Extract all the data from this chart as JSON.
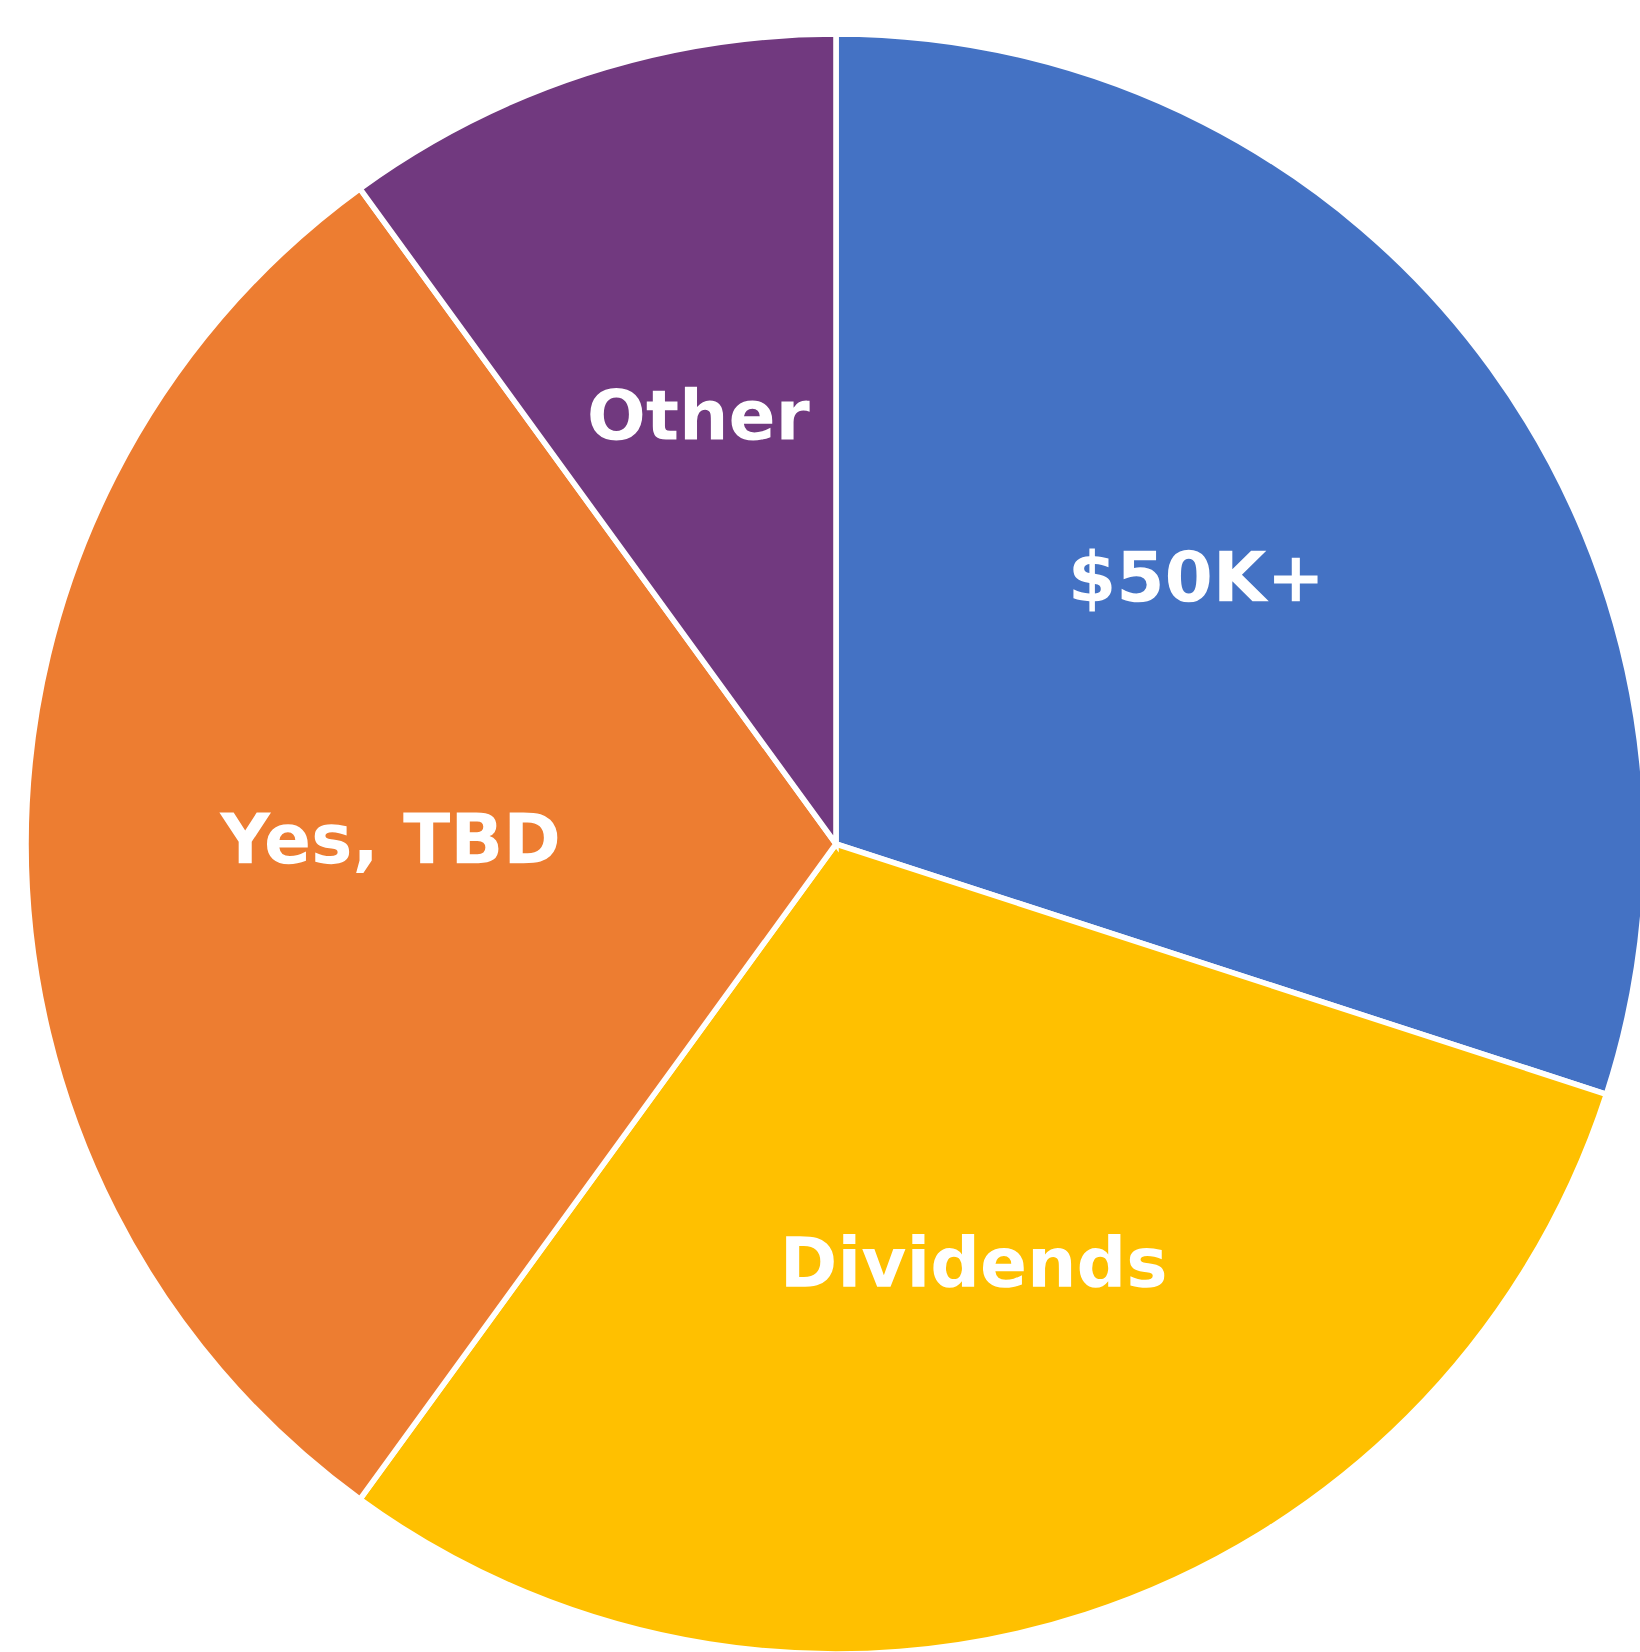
{
  "chart_data": {
    "type": "pie",
    "categories": [
      "$50K+",
      "Dividends",
      "Yes, TBD",
      "Other"
    ],
    "values": [
      30,
      30,
      30,
      10
    ],
    "colors": [
      "#4472c4",
      "#ffc000",
      "#ed7d31",
      "#71397f"
    ],
    "legend": false
  }
}
